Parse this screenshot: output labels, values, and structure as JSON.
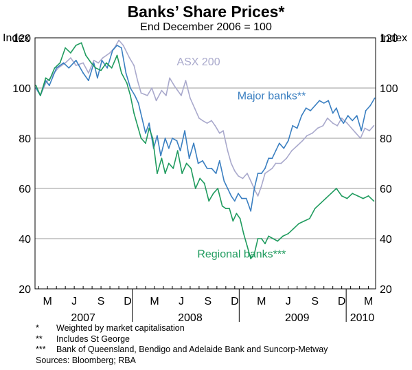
{
  "title": "Banks’ Share Prices*",
  "subtitle": "End December 2006 = 100",
  "notes": [
    {
      "mark": "*",
      "text": "Weighted by market capitalisation"
    },
    {
      "mark": "**",
      "text": "Includes St George"
    },
    {
      "mark": "***",
      "text": "Bank of Queensland, Bendigo and Adelaide Bank and Suncorp-Metway"
    }
  ],
  "sources": "Sources: Bloomberg; RBA",
  "colors": {
    "asx": "#a9a9cc",
    "major": "#3a7fc1",
    "regional": "#1f9b5e",
    "grid": "#9a9a9a"
  },
  "chart_data": {
    "type": "line",
    "ylabel_left": "Index",
    "ylabel_right": "Index",
    "ylim": [
      20,
      120
    ],
    "yticks": [
      20,
      40,
      60,
      80,
      100,
      120
    ],
    "x_unit": "months since end December 2006",
    "xlim": [
      1.6,
      39.8
    ],
    "x_month_ticks": [
      {
        "x": 3,
        "label": "M"
      },
      {
        "x": 6,
        "label": "J"
      },
      {
        "x": 9,
        "label": "S"
      },
      {
        "x": 12,
        "label": "D"
      },
      {
        "x": 15,
        "label": "M"
      },
      {
        "x": 18,
        "label": "J"
      },
      {
        "x": 21,
        "label": "S"
      },
      {
        "x": 24,
        "label": "D"
      },
      {
        "x": 27,
        "label": "M"
      },
      {
        "x": 30,
        "label": "J"
      },
      {
        "x": 33,
        "label": "S"
      },
      {
        "x": 36,
        "label": "D"
      },
      {
        "x": 39,
        "label": "M"
      }
    ],
    "x_year_labels": [
      {
        "x": 7,
        "label": "2007"
      },
      {
        "x": 19,
        "label": "2008"
      },
      {
        "x": 31,
        "label": "2009"
      },
      {
        "x": 38.3,
        "label": "2010"
      }
    ],
    "x_year_dividers": [
      12.5,
      24.5,
      36.5
    ],
    "series": [
      {
        "name": "ASX 200",
        "key": "asx",
        "label": "ASX 200",
        "label_pos": [
          17.5,
          109
        ],
        "x": [
          1.7,
          2.2,
          2.8,
          3.3,
          4.2,
          5.0,
          5.6,
          6.2,
          7.0,
          7.6,
          8.2,
          8.7,
          9.2,
          10.0,
          10.5,
          11.0,
          11.5,
          12.2,
          12.7,
          13.1,
          13.5,
          14.2,
          14.7,
          15.2,
          15.8,
          16.3,
          16.7,
          17.2,
          17.6,
          18.0,
          18.5,
          19.0,
          19.5,
          20.0,
          20.4,
          20.9,
          21.4,
          21.8,
          22.3,
          22.7,
          23.2,
          23.6,
          24.0,
          24.4,
          24.9,
          25.4,
          25.8,
          26.3,
          26.6,
          27.0,
          27.4,
          27.8,
          28.2,
          28.6,
          29.2,
          29.8,
          30.4,
          31.0,
          31.6,
          32.1,
          32.7,
          33.3,
          33.9,
          34.4,
          35.0,
          35.5,
          36.0,
          36.6,
          37.1,
          37.6,
          38.1,
          38.6,
          39.1,
          39.6
        ],
        "y": [
          101,
          97,
          102,
          104,
          108,
          110,
          112,
          109,
          110,
          106,
          111,
          110,
          112,
          114,
          116,
          119,
          117,
          112,
          109,
          103,
          98,
          97,
          100,
          95,
          99,
          97,
          104,
          101,
          99,
          97,
          103,
          96,
          92,
          88,
          87,
          86,
          87,
          85,
          82,
          83,
          75,
          70,
          67,
          65,
          64,
          66,
          63,
          59,
          57,
          61,
          66,
          67,
          68,
          70,
          70,
          72,
          75,
          77,
          79,
          81,
          82,
          84,
          85,
          88,
          86,
          85,
          88,
          86,
          84,
          82,
          80,
          84,
          83,
          85
        ]
      },
      {
        "name": "Major banks**",
        "key": "major",
        "label": "Major banks**",
        "label_pos": [
          24.3,
          95.5
        ],
        "x": [
          1.7,
          2.2,
          2.8,
          3.2,
          4.0,
          4.8,
          5.4,
          6.2,
          7.0,
          7.6,
          8.2,
          8.6,
          9.1,
          9.7,
          10.3,
          10.8,
          11.3,
          11.8,
          12.3,
          12.8,
          13.2,
          13.6,
          14.0,
          14.4,
          14.9,
          15.3,
          15.7,
          16.2,
          16.6,
          17.0,
          17.5,
          17.9,
          18.4,
          18.9,
          19.4,
          19.9,
          20.4,
          20.9,
          21.4,
          21.9,
          22.3,
          22.8,
          23.2,
          23.6,
          24.0,
          24.4,
          24.8,
          25.3,
          25.8,
          26.2,
          26.6,
          27.0,
          27.4,
          27.8,
          28.2,
          28.6,
          29.0,
          29.5,
          30.0,
          30.5,
          31.0,
          31.5,
          32.0,
          32.5,
          33.0,
          33.5,
          34.0,
          34.5,
          35.0,
          35.4,
          35.8,
          36.2,
          36.7,
          37.2,
          37.7,
          38.2,
          38.7,
          39.2,
          39.7
        ],
        "y": [
          100,
          97,
          103,
          101,
          108,
          110,
          108,
          111,
          106,
          103,
          110,
          104,
          111,
          108,
          115,
          117,
          116,
          106,
          100,
          97,
          94,
          88,
          82,
          86,
          76,
          81,
          73,
          80,
          76,
          80,
          79,
          75,
          83,
          72,
          78,
          70,
          71,
          68,
          68,
          66,
          71,
          63,
          60,
          57,
          55,
          58,
          56,
          56,
          51,
          60,
          66,
          66,
          68,
          72,
          72,
          75,
          78,
          76,
          79,
          85,
          84,
          89,
          92,
          91,
          93,
          95,
          94,
          95,
          90,
          92,
          88,
          86,
          89,
          87,
          89,
          83,
          91,
          93,
          96
        ]
      },
      {
        "name": "Regional banks***",
        "key": "regional",
        "label": "Regional banks***",
        "label_pos": [
          19.8,
          32.5
        ],
        "x": [
          1.7,
          2.2,
          2.8,
          3.2,
          3.8,
          4.4,
          5.0,
          5.6,
          6.2,
          6.8,
          7.3,
          7.9,
          8.4,
          9.0,
          9.6,
          10.2,
          10.8,
          11.3,
          11.9,
          12.3,
          12.7,
          13.1,
          13.5,
          14.0,
          14.4,
          14.8,
          15.3,
          15.8,
          16.2,
          16.6,
          17.1,
          17.6,
          18.1,
          18.6,
          19.1,
          19.6,
          20.1,
          20.6,
          21.1,
          21.6,
          22.1,
          22.6,
          23.0,
          23.4,
          23.8,
          24.2,
          24.6,
          25.0,
          25.4,
          25.8,
          26.2,
          26.6,
          27.0,
          27.4,
          27.8,
          28.3,
          28.8,
          29.4,
          30.0,
          30.6,
          31.2,
          31.8,
          32.4,
          33.0,
          33.6,
          34.2,
          34.8,
          35.4,
          36.0,
          36.6,
          37.2,
          37.8,
          38.4,
          39.0,
          39.6
        ],
        "y": [
          101,
          97,
          104,
          103,
          108,
          110,
          116,
          114,
          117,
          118,
          113,
          110,
          108,
          107,
          110,
          108,
          113,
          106,
          102,
          97,
          90,
          85,
          80,
          78,
          84,
          80,
          66,
          72,
          66,
          70,
          68,
          75,
          66,
          70,
          68,
          60,
          64,
          62,
          55,
          58,
          60,
          53,
          52,
          52,
          47,
          50,
          48,
          42,
          37,
          32,
          34,
          40,
          40,
          38,
          41,
          40,
          39,
          41,
          42,
          44,
          46,
          47,
          48,
          52,
          54,
          56,
          58,
          60,
          57,
          56,
          58,
          57,
          56,
          57,
          55
        ]
      }
    ]
  }
}
